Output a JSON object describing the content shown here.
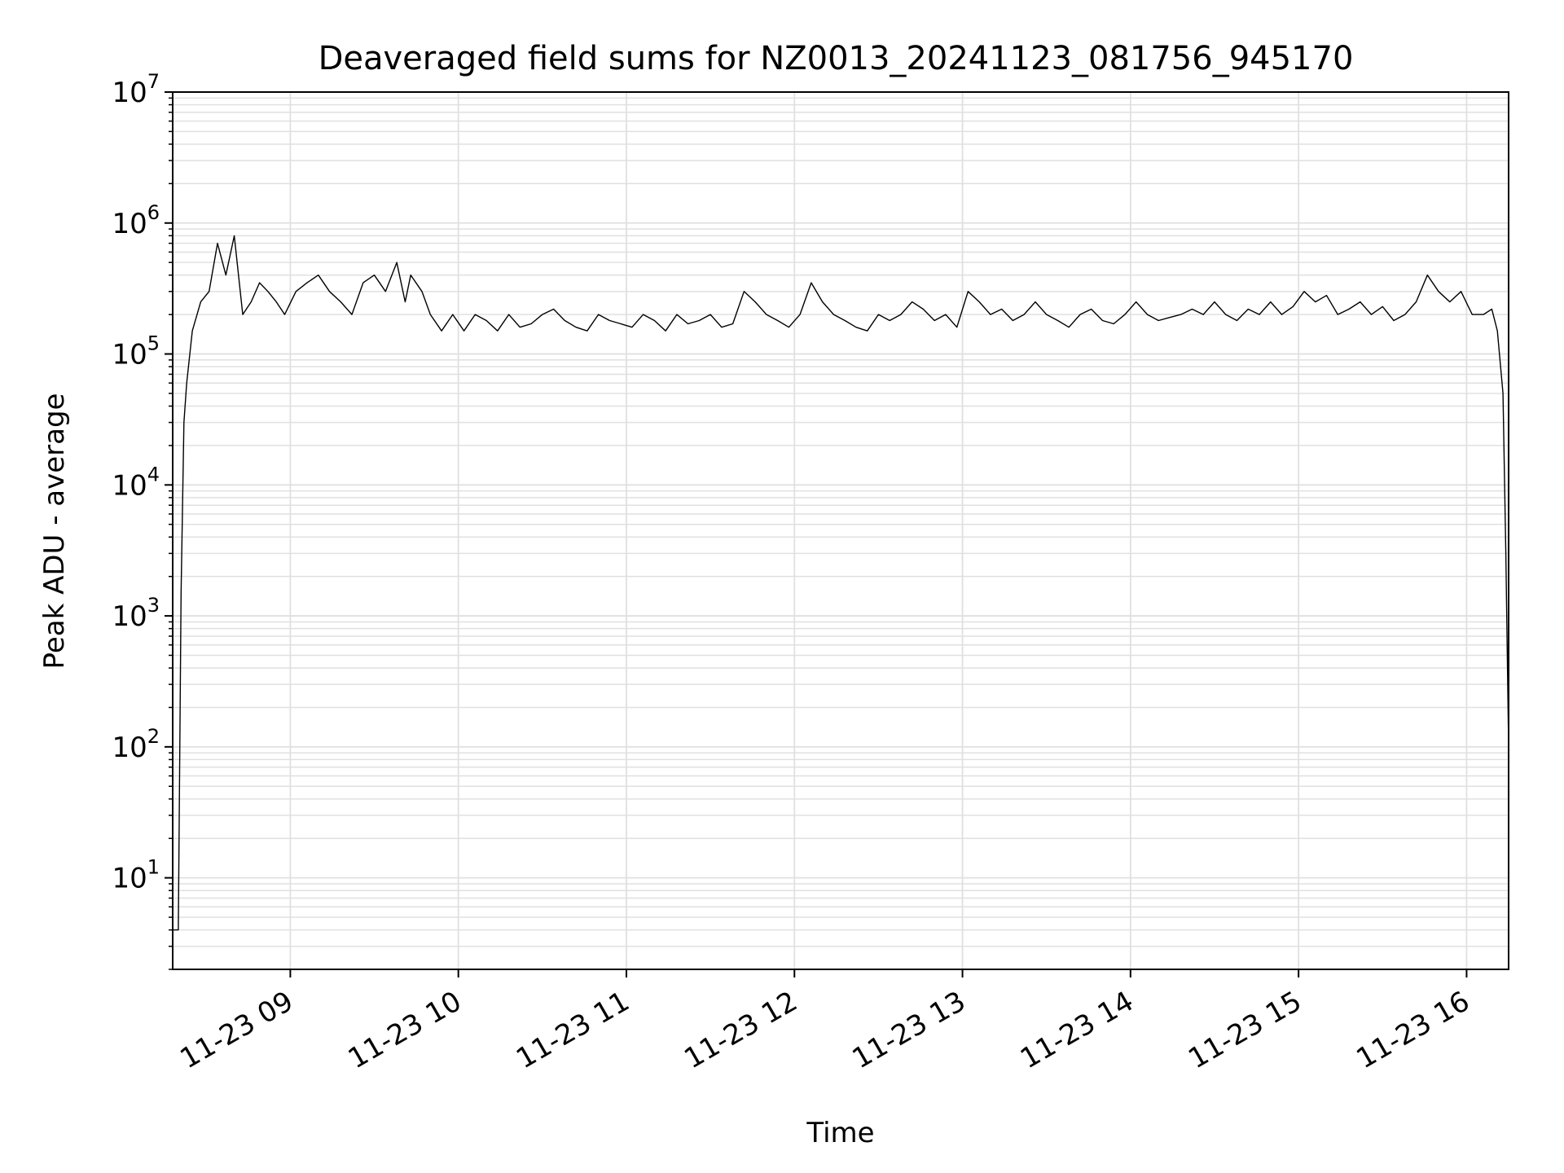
{
  "chart_data": {
    "type": "line",
    "title": "Deaveraged field sums for NZ0013_20241123_081756_945170",
    "xlabel": "Time",
    "ylabel": "Peak ADU - average",
    "yscale": "log",
    "grid": "both",
    "line_color": "#000000",
    "grid_color": "#e0e0e0",
    "xlim": [
      "2024-11-23 08:18",
      "2024-11-23 16:15"
    ],
    "ylim": [
      2,
      10000000
    ],
    "x_ticks": [
      {
        "label": "11-23 09",
        "value": "2024-11-23 09:00"
      },
      {
        "label": "11-23 10",
        "value": "2024-11-23 10:00"
      },
      {
        "label": "11-23 11",
        "value": "2024-11-23 11:00"
      },
      {
        "label": "11-23 12",
        "value": "2024-11-23 12:00"
      },
      {
        "label": "11-23 13",
        "value": "2024-11-23 13:00"
      },
      {
        "label": "11-23 14",
        "value": "2024-11-23 14:00"
      },
      {
        "label": "11-23 15",
        "value": "2024-11-23 15:00"
      },
      {
        "label": "11-23 16",
        "value": "2024-11-23 16:00"
      }
    ],
    "y_ticks": [
      {
        "base": "10",
        "exp": "1",
        "value": 10
      },
      {
        "base": "10",
        "exp": "2",
        "value": 100
      },
      {
        "base": "10",
        "exp": "3",
        "value": 1000
      },
      {
        "base": "10",
        "exp": "4",
        "value": 10000
      },
      {
        "base": "10",
        "exp": "5",
        "value": 100000
      },
      {
        "base": "10",
        "exp": "6",
        "value": 1000000
      },
      {
        "base": "10",
        "exp": "7",
        "value": 10000000
      }
    ],
    "series": [
      {
        "x": [
          "2024-11-23 08:18",
          "2024-11-23 08:20",
          "2024-11-23 08:21",
          "2024-11-23 08:22",
          "2024-11-23 08:23",
          "2024-11-23 08:25",
          "2024-11-23 08:28",
          "2024-11-23 08:31",
          "2024-11-23 08:34",
          "2024-11-23 08:37",
          "2024-11-23 08:40",
          "2024-11-23 08:43",
          "2024-11-23 08:46",
          "2024-11-23 08:49",
          "2024-11-23 08:52",
          "2024-11-23 08:55",
          "2024-11-23 08:58",
          "2024-11-23 09:02",
          "2024-11-23 09:06",
          "2024-11-23 09:10",
          "2024-11-23 09:14",
          "2024-11-23 09:18",
          "2024-11-23 09:22",
          "2024-11-23 09:26",
          "2024-11-23 09:30",
          "2024-11-23 09:34",
          "2024-11-23 09:38",
          "2024-11-23 09:41",
          "2024-11-23 09:43",
          "2024-11-23 09:47",
          "2024-11-23 09:50",
          "2024-11-23 09:54",
          "2024-11-23 09:58",
          "2024-11-23 10:02",
          "2024-11-23 10:06",
          "2024-11-23 10:10",
          "2024-11-23 10:14",
          "2024-11-23 10:18",
          "2024-11-23 10:22",
          "2024-11-23 10:26",
          "2024-11-23 10:30",
          "2024-11-23 10:34",
          "2024-11-23 10:38",
          "2024-11-23 10:42",
          "2024-11-23 10:46",
          "2024-11-23 10:50",
          "2024-11-23 10:54",
          "2024-11-23 10:58",
          "2024-11-23 11:02",
          "2024-11-23 11:06",
          "2024-11-23 11:10",
          "2024-11-23 11:14",
          "2024-11-23 11:18",
          "2024-11-23 11:22",
          "2024-11-23 11:26",
          "2024-11-23 11:30",
          "2024-11-23 11:34",
          "2024-11-23 11:38",
          "2024-11-23 11:42",
          "2024-11-23 11:46",
          "2024-11-23 11:50",
          "2024-11-23 11:54",
          "2024-11-23 11:58",
          "2024-11-23 12:02",
          "2024-11-23 12:06",
          "2024-11-23 12:10",
          "2024-11-23 12:14",
          "2024-11-23 12:18",
          "2024-11-23 12:22",
          "2024-11-23 12:26",
          "2024-11-23 12:30",
          "2024-11-23 12:34",
          "2024-11-23 12:38",
          "2024-11-23 12:42",
          "2024-11-23 12:46",
          "2024-11-23 12:50",
          "2024-11-23 12:54",
          "2024-11-23 12:58",
          "2024-11-23 13:02",
          "2024-11-23 13:06",
          "2024-11-23 13:10",
          "2024-11-23 13:14",
          "2024-11-23 13:18",
          "2024-11-23 13:22",
          "2024-11-23 13:26",
          "2024-11-23 13:30",
          "2024-11-23 13:34",
          "2024-11-23 13:38",
          "2024-11-23 13:42",
          "2024-11-23 13:46",
          "2024-11-23 13:50",
          "2024-11-23 13:54",
          "2024-11-23 13:58",
          "2024-11-23 14:02",
          "2024-11-23 14:06",
          "2024-11-23 14:10",
          "2024-11-23 14:14",
          "2024-11-23 14:18",
          "2024-11-23 14:22",
          "2024-11-23 14:26",
          "2024-11-23 14:30",
          "2024-11-23 14:34",
          "2024-11-23 14:38",
          "2024-11-23 14:42",
          "2024-11-23 14:46",
          "2024-11-23 14:50",
          "2024-11-23 14:54",
          "2024-11-23 14:58",
          "2024-11-23 15:02",
          "2024-11-23 15:06",
          "2024-11-23 15:10",
          "2024-11-23 15:14",
          "2024-11-23 15:18",
          "2024-11-23 15:22",
          "2024-11-23 15:26",
          "2024-11-23 15:30",
          "2024-11-23 15:34",
          "2024-11-23 15:38",
          "2024-11-23 15:42",
          "2024-11-23 15:46",
          "2024-11-23 15:50",
          "2024-11-23 15:54",
          "2024-11-23 15:58",
          "2024-11-23 16:02",
          "2024-11-23 16:06",
          "2024-11-23 16:09",
          "2024-11-23 16:11",
          "2024-11-23 16:13",
          "2024-11-23 16:14",
          "2024-11-23 16:15"
        ],
        "y": [
          4,
          4,
          1500,
          30000,
          60000,
          150000,
          250000,
          300000,
          700000,
          400000,
          800000,
          200000,
          250000,
          350000,
          300000,
          250000,
          200000,
          300000,
          350000,
          400000,
          300000,
          250000,
          200000,
          350000,
          400000,
          300000,
          500000,
          250000,
          400000,
          300000,
          200000,
          150000,
          200000,
          150000,
          200000,
          180000,
          150000,
          200000,
          160000,
          170000,
          200000,
          220000,
          180000,
          160000,
          150000,
          200000,
          180000,
          170000,
          160000,
          200000,
          180000,
          150000,
          200000,
          170000,
          180000,
          200000,
          160000,
          170000,
          300000,
          250000,
          200000,
          180000,
          160000,
          200000,
          350000,
          250000,
          200000,
          180000,
          160000,
          150000,
          200000,
          180000,
          200000,
          250000,
          220000,
          180000,
          200000,
          160000,
          300000,
          250000,
          200000,
          220000,
          180000,
          200000,
          250000,
          200000,
          180000,
          160000,
          200000,
          220000,
          180000,
          170000,
          200000,
          250000,
          200000,
          180000,
          190000,
          200000,
          220000,
          200000,
          250000,
          200000,
          180000,
          220000,
          200000,
          250000,
          200000,
          230000,
          300000,
          250000,
          280000,
          200000,
          220000,
          250000,
          200000,
          230000,
          180000,
          200000,
          250000,
          400000,
          300000,
          250000,
          300000,
          200000,
          200000,
          220000,
          150000,
          50000,
          3000,
          100
        ]
      }
    ]
  }
}
